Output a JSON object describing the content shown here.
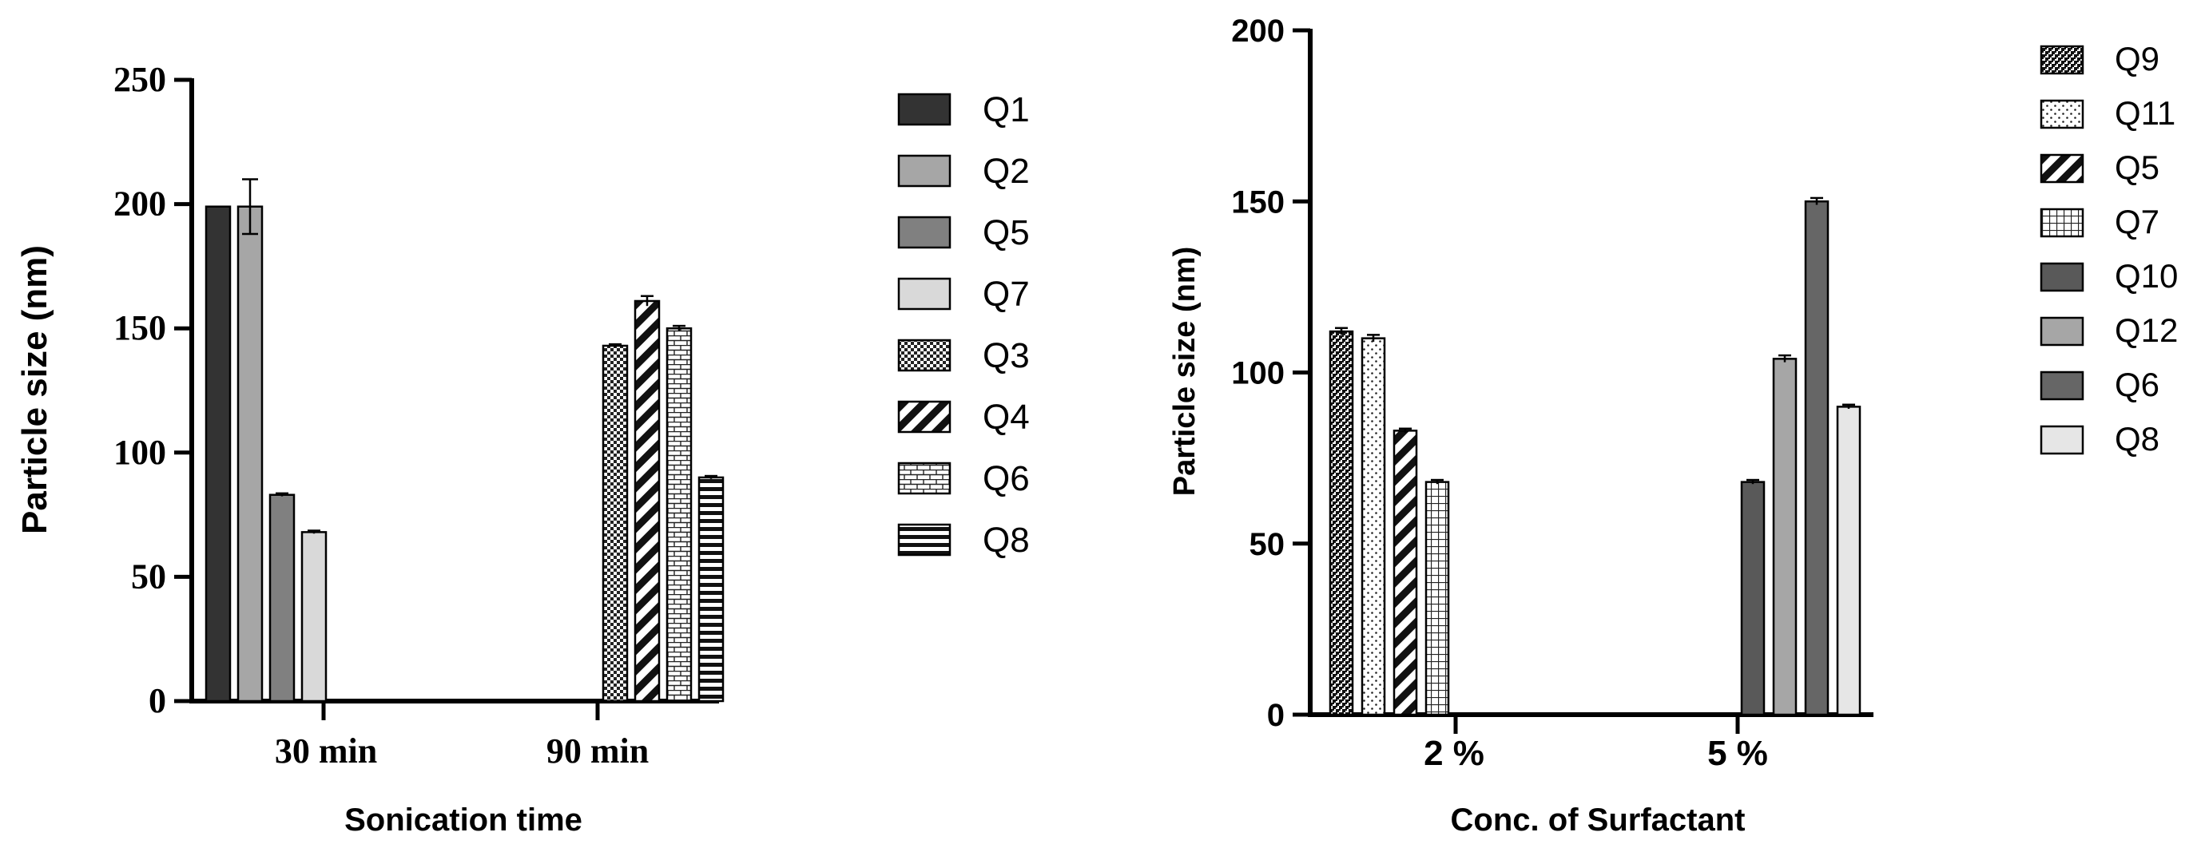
{
  "chart_data": [
    {
      "type": "bar",
      "title": "",
      "xlabel": "Sonication time",
      "ylabel": "Particle size (nm)",
      "ylim": [
        0,
        250
      ],
      "yticks": [
        0,
        50,
        100,
        150,
        200,
        250
      ],
      "ytick_labels": [
        "0",
        "50",
        "100",
        "150",
        "200",
        "250"
      ],
      "categories": [
        "30 min",
        "90 min"
      ],
      "grid": false,
      "legend_position": "right",
      "groups": [
        {
          "category": "30 min",
          "bars": [
            {
              "name": "Q1",
              "value": 199,
              "error": 0,
              "fill": "#333333",
              "pattern": "solid"
            },
            {
              "name": "Q2",
              "value": 199,
              "error": 11,
              "fill": "#a6a6a6",
              "pattern": "solid"
            },
            {
              "name": "Q5",
              "value": 83,
              "error": 0.6,
              "fill": "#808080",
              "pattern": "solid"
            },
            {
              "name": "Q7",
              "value": 68,
              "error": 0.6,
              "fill": "#d9d9d9",
              "pattern": "solid"
            }
          ]
        },
        {
          "category": "90 min",
          "bars": [
            {
              "name": "Q3",
              "value": 143,
              "error": 0.6,
              "fill": "#ffffff",
              "pattern": "checker"
            },
            {
              "name": "Q4",
              "value": 161,
              "error": 2,
              "fill": "#ffffff",
              "pattern": "diagonal"
            },
            {
              "name": "Q6",
              "value": 150,
              "error": 1,
              "fill": "#ffffff",
              "pattern": "brick"
            },
            {
              "name": "Q8",
              "value": 90,
              "error": 0.6,
              "fill": "#ffffff",
              "pattern": "hstripe"
            }
          ]
        }
      ],
      "legend": [
        {
          "name": "Q1",
          "fill": "#333333",
          "pattern": "solid"
        },
        {
          "name": "Q2",
          "fill": "#a6a6a6",
          "pattern": "solid"
        },
        {
          "name": "Q5",
          "fill": "#808080",
          "pattern": "solid"
        },
        {
          "name": "Q7",
          "fill": "#d9d9d9",
          "pattern": "solid"
        },
        {
          "name": "Q3",
          "fill": "#ffffff",
          "pattern": "checker"
        },
        {
          "name": "Q4",
          "fill": "#ffffff",
          "pattern": "diagonal"
        },
        {
          "name": "Q6",
          "fill": "#ffffff",
          "pattern": "brick"
        },
        {
          "name": "Q8",
          "fill": "#ffffff",
          "pattern": "hstripe"
        }
      ]
    },
    {
      "type": "bar",
      "title": "",
      "xlabel": "Conc. of Surfactant",
      "ylabel": "Particle size (nm)",
      "ylim": [
        0,
        200
      ],
      "yticks": [
        0,
        50,
        100,
        150,
        200
      ],
      "ytick_labels": [
        "0",
        "50",
        "100",
        "150",
        "200"
      ],
      "categories": [
        "2 %",
        "5 %"
      ],
      "grid": false,
      "legend_position": "right",
      "groups": [
        {
          "category": "2 %",
          "bars": [
            {
              "name": "Q9",
              "value": 112,
              "error": 1,
              "fill": "#ffffff",
              "pattern": "dense-dots"
            },
            {
              "name": "Q11",
              "value": 110,
              "error": 1,
              "fill": "#ffffff",
              "pattern": "dots"
            },
            {
              "name": "Q5",
              "value": 83,
              "error": 0.6,
              "fill": "#ffffff",
              "pattern": "diagonal"
            },
            {
              "name": "Q7",
              "value": 68,
              "error": 0.6,
              "fill": "#ffffff",
              "pattern": "grid"
            }
          ]
        },
        {
          "category": "5 %",
          "bars": [
            {
              "name": "Q10",
              "value": 68,
              "error": 0.6,
              "fill": "#595959",
              "pattern": "solid"
            },
            {
              "name": "Q12",
              "value": 104,
              "error": 1,
              "fill": "#a6a6a6",
              "pattern": "solid"
            },
            {
              "name": "Q6",
              "value": 150,
              "error": 1,
              "fill": "#666666",
              "pattern": "solid"
            },
            {
              "name": "Q8",
              "value": 90,
              "error": 0.6,
              "fill": "#e6e6e6",
              "pattern": "solid"
            }
          ]
        }
      ],
      "legend": [
        {
          "name": "Q9",
          "fill": "#ffffff",
          "pattern": "dense-dots"
        },
        {
          "name": "Q11",
          "fill": "#ffffff",
          "pattern": "dots"
        },
        {
          "name": "Q5",
          "fill": "#ffffff",
          "pattern": "diagonal"
        },
        {
          "name": "Q7",
          "fill": "#ffffff",
          "pattern": "grid"
        },
        {
          "name": "Q10",
          "fill": "#595959",
          "pattern": "solid"
        },
        {
          "name": "Q12",
          "fill": "#a6a6a6",
          "pattern": "solid"
        },
        {
          "name": "Q6",
          "fill": "#666666",
          "pattern": "solid"
        },
        {
          "name": "Q8",
          "fill": "#e6e6e6",
          "pattern": "solid"
        }
      ]
    }
  ]
}
